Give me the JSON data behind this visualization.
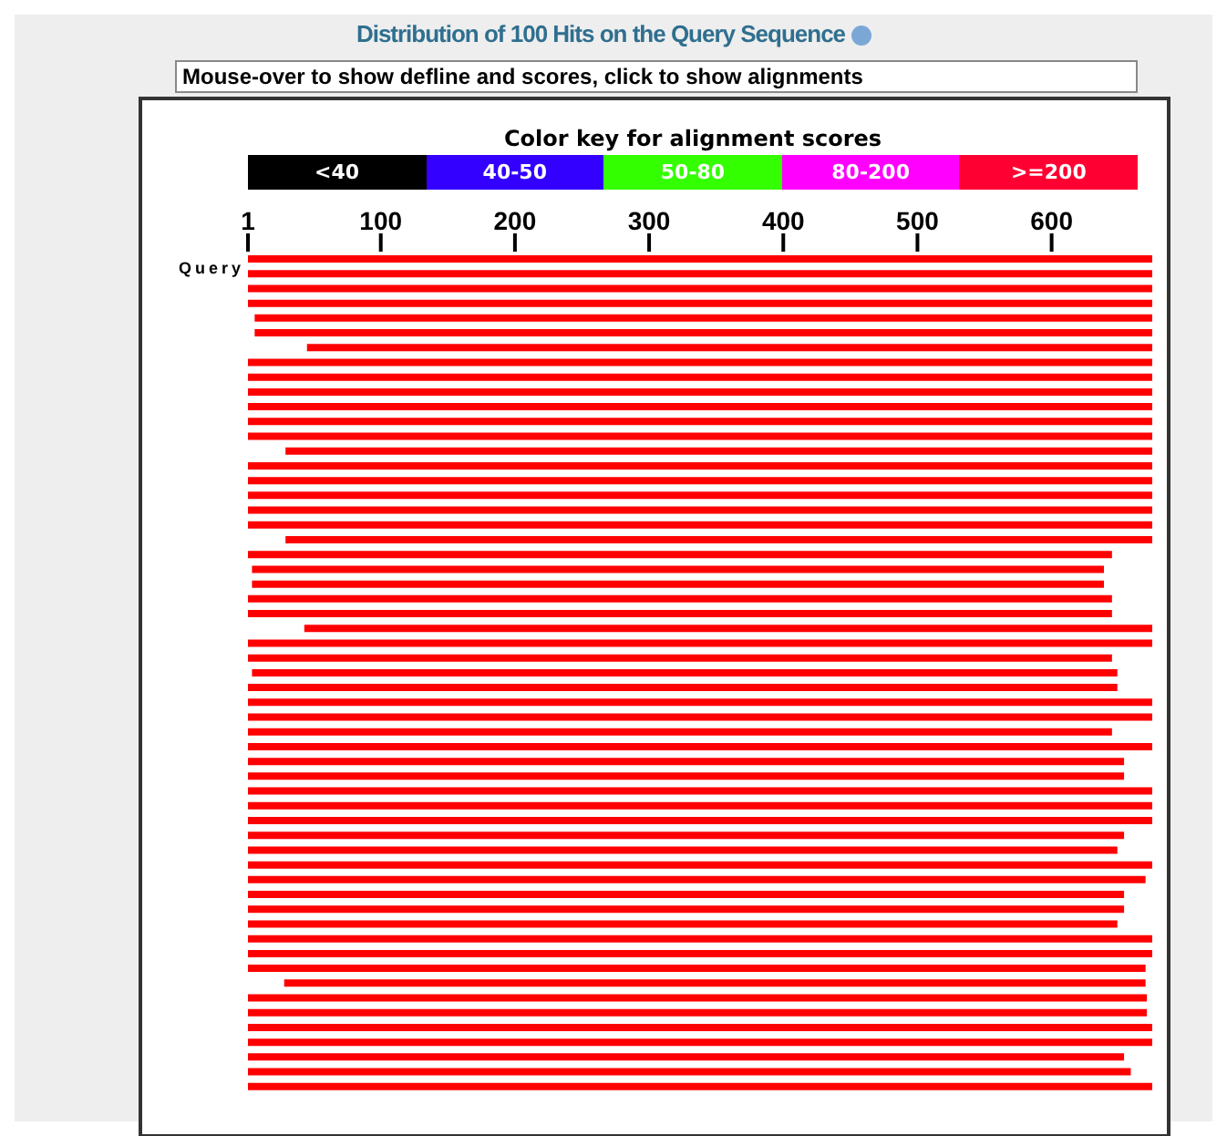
{
  "chart_data": [
    {
      "type": "bar",
      "orientation": "horizontal",
      "title": "Distribution of 100 Hits on the Query Sequence",
      "annotations": [
        "Mouse-over to show defline and scores, click to show alignments",
        "Query"
      ],
      "grid": false,
      "categories": [
        null,
        null,
        null,
        null,
        null,
        null,
        null,
        null,
        null,
        null,
        null,
        null,
        null,
        null,
        null,
        null,
        null,
        null,
        null,
        null,
        null,
        null,
        null,
        null,
        null,
        null,
        null,
        null,
        null,
        null,
        null,
        null,
        null,
        null,
        null,
        null,
        null,
        null,
        null,
        null,
        null,
        null,
        null,
        null,
        null,
        null,
        null,
        null,
        null,
        null,
        null,
        null,
        null,
        null,
        null,
        null,
        null
      ],
      "base": [
        1,
        1,
        1,
        1,
        6,
        6,
        45,
        1,
        1,
        1,
        1,
        1,
        1,
        29,
        1,
        1,
        1,
        1,
        1,
        29,
        1,
        4,
        4,
        1,
        1,
        43,
        1,
        1,
        4,
        1,
        1,
        1,
        1,
        1,
        1,
        1,
        1,
        1,
        1,
        1,
        1,
        1,
        1,
        1,
        1,
        1,
        1,
        1,
        1,
        28,
        1,
        1,
        1,
        1,
        1,
        1,
        1
      ],
      "xlim": [
        1,
        675
      ],
      "xticks": [
        1,
        100,
        200,
        300,
        400,
        500,
        600
      ],
      "color": "#ff0000",
      "values": [
        674,
        674,
        674,
        674,
        669,
        669,
        630,
        674,
        674,
        674,
        674,
        674,
        674,
        646,
        674,
        674,
        674,
        674,
        674,
        646,
        644,
        635,
        635,
        644,
        644,
        632,
        674,
        644,
        645,
        648,
        674,
        674,
        644,
        674,
        653,
        653,
        674,
        674,
        674,
        653,
        648,
        674,
        669,
        653,
        653,
        648,
        674,
        674,
        669,
        642,
        670,
        670,
        674,
        674,
        653,
        658,
        674
      ]
    },
    {
      "type": "other",
      "title": "Color key for alignment scores",
      "categories": [
        "<40",
        "40-50",
        "50-80",
        "80-200",
        ">=200"
      ],
      "colors": [
        "#000000",
        "#3300ff",
        "#33ff00",
        "#ff00ff",
        "#ff0033"
      ]
    }
  ]
}
